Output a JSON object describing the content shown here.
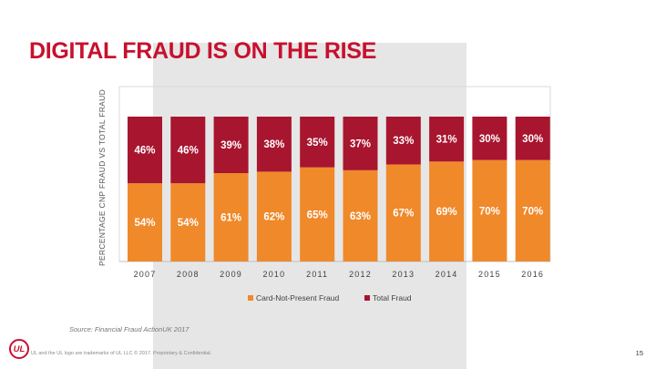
{
  "slide": {
    "title": "DIGITAL FRAUD IS ON THE RISE",
    "source": "Source: Financial Fraud ActionUK 2017",
    "logo_text": "UL",
    "footer": "UL and the UL logo are trademarks of UL LLC © 2017. Proprietary & Confidential.",
    "page_number": "15"
  },
  "colors": {
    "card_not_present": "#f0892a",
    "total_fraud": "#a8152f",
    "title": "#c8102e",
    "gray_panel": "#e6e6e6"
  },
  "chart_data": {
    "type": "bar",
    "stacked": true,
    "percent_stacked": true,
    "categories": [
      "2007",
      "2008",
      "2009",
      "2010",
      "2011",
      "2012",
      "2013",
      "2014",
      "2015",
      "2016"
    ],
    "series": [
      {
        "name": "Card-Not-Present Fraud",
        "values": [
          54,
          54,
          61,
          62,
          65,
          63,
          67,
          69,
          70,
          70
        ],
        "color": "#f0892a"
      },
      {
        "name": "Total Fraud",
        "values": [
          46,
          46,
          39,
          38,
          35,
          37,
          33,
          31,
          30,
          30
        ],
        "color": "#a8152f"
      }
    ],
    "title": "DIGITAL FRAUD IS ON THE RISE",
    "xlabel": "",
    "ylabel": "PERCENTAGE CNP FRAUD VS TOTAL FRAUD",
    "ylim": [
      0,
      100
    ],
    "grid": true,
    "legend_position": "bottom",
    "data_labels": true
  }
}
